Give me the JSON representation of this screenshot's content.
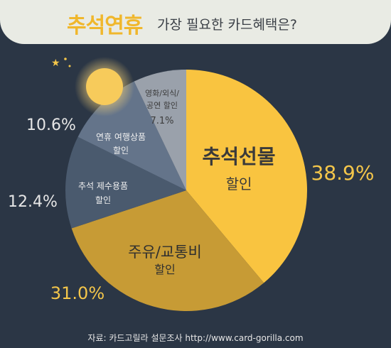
{
  "title": {
    "highlight": "추석연휴",
    "rest": "가장 필요한 카드혜택은?"
  },
  "chart_data": {
    "type": "pie",
    "slices": [
      {
        "label_line1": "추석선물",
        "label_line2": "할인",
        "value": 38.9,
        "value_label": "38.9%",
        "color": "#f9c440"
      },
      {
        "label_line1": "주유/교통비",
        "label_line2": "할인",
        "value": 31.0,
        "value_label": "31.0%",
        "color": "#c79b35"
      },
      {
        "label_line1": "추석 제수용품",
        "label_line2": "할인",
        "value": 12.4,
        "value_label": "12.4%",
        "color": "#4a5a6e"
      },
      {
        "label_line1": "연휴 여행상품",
        "label_line2": "할인",
        "value": 10.6,
        "value_label": "10.6%",
        "color": "#64748a"
      },
      {
        "label_line1": "영화/외식/",
        "label_line2": "공연 할인",
        "value": 7.1,
        "value_label": "7.1%",
        "color": "#9aa1ab"
      }
    ]
  },
  "source": "자료: 카드고릴라 설문조사   http://www.card-gorilla.com"
}
